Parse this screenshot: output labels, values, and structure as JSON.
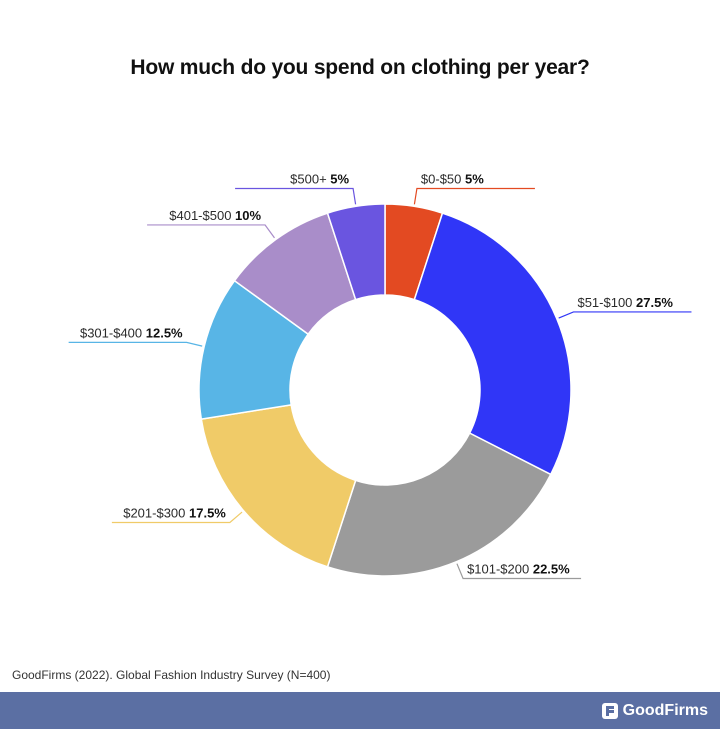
{
  "chart_data": {
    "type": "pie",
    "variant": "donut",
    "title": "How much do you spend on clothing per year?",
    "unit": "%",
    "slices": [
      {
        "label": "$0-$50",
        "value_label": "5%",
        "value": 5,
        "color": "#e34a22"
      },
      {
        "label": "$51-$100",
        "value_label": "27.5%",
        "value": 27.5,
        "color": "#3036f7"
      },
      {
        "label": "$101-$200",
        "value_label": "22.5%",
        "value": 22.5,
        "color": "#9b9b9b"
      },
      {
        "label": "$201-$300",
        "value_label": "17.5%",
        "value": 17.5,
        "color": "#f0cb68"
      },
      {
        "label": "$301-$400",
        "value_label": "12.5%",
        "value": 12.5,
        "color": "#58b5e6"
      },
      {
        "label": "$401-$500",
        "value_label": "10%",
        "value": 10,
        "color": "#a98dc9"
      },
      {
        "label": "$500+",
        "value_label": "5%",
        "value": 5,
        "color": "#6a55e0"
      }
    ],
    "legend": "none",
    "start_angle_deg": 0,
    "direction": "clockwise"
  },
  "source_text": "GoodFirms (2022). Global Fashion Industry Survey (N=400)",
  "brand": {
    "name": "GoodFirms",
    "icon": "goodfirms-logo-icon",
    "bar_color": "#5b6fa3"
  }
}
